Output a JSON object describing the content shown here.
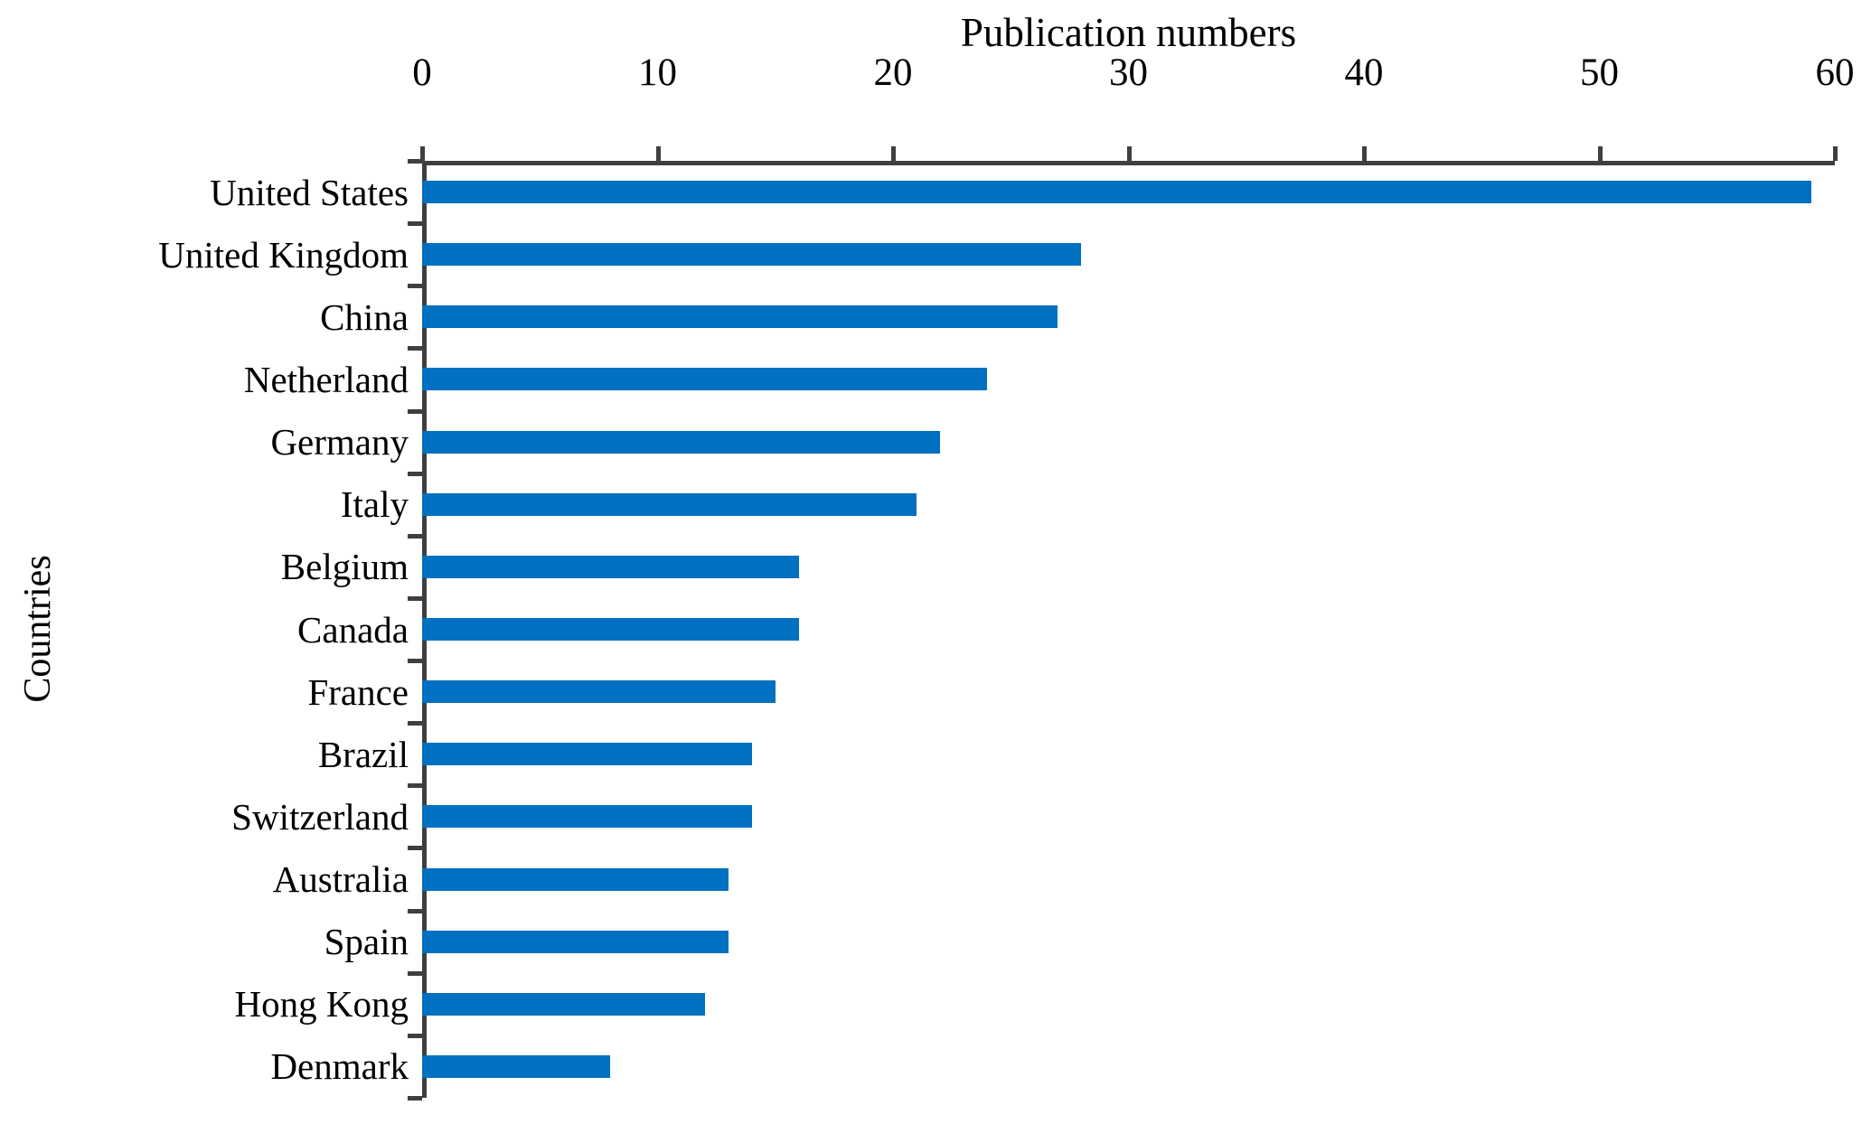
{
  "chart_data": {
    "type": "bar",
    "orientation": "horizontal",
    "title": "Publication numbers",
    "xlabel": "Publication numbers",
    "ylabel": "Countries",
    "categories": [
      "United States",
      "United Kingdom",
      "China",
      "Netherland",
      "Germany",
      "Italy",
      "Belgium",
      "Canada",
      "France",
      "Brazil",
      "Switzerland",
      "Australia",
      "Spain",
      "Hong Kong",
      "Denmark"
    ],
    "values": [
      59,
      28,
      27,
      24,
      22,
      21,
      16,
      16,
      15,
      14,
      14,
      13,
      13,
      12,
      8
    ],
    "xlim": [
      0,
      60
    ],
    "x_ticks": [
      0,
      10,
      20,
      30,
      40,
      50,
      60
    ],
    "grid": "off",
    "legend": "none",
    "bar_color": "#0070C0",
    "axis_color": "#3f3f3f",
    "text_color": "#000000"
  }
}
